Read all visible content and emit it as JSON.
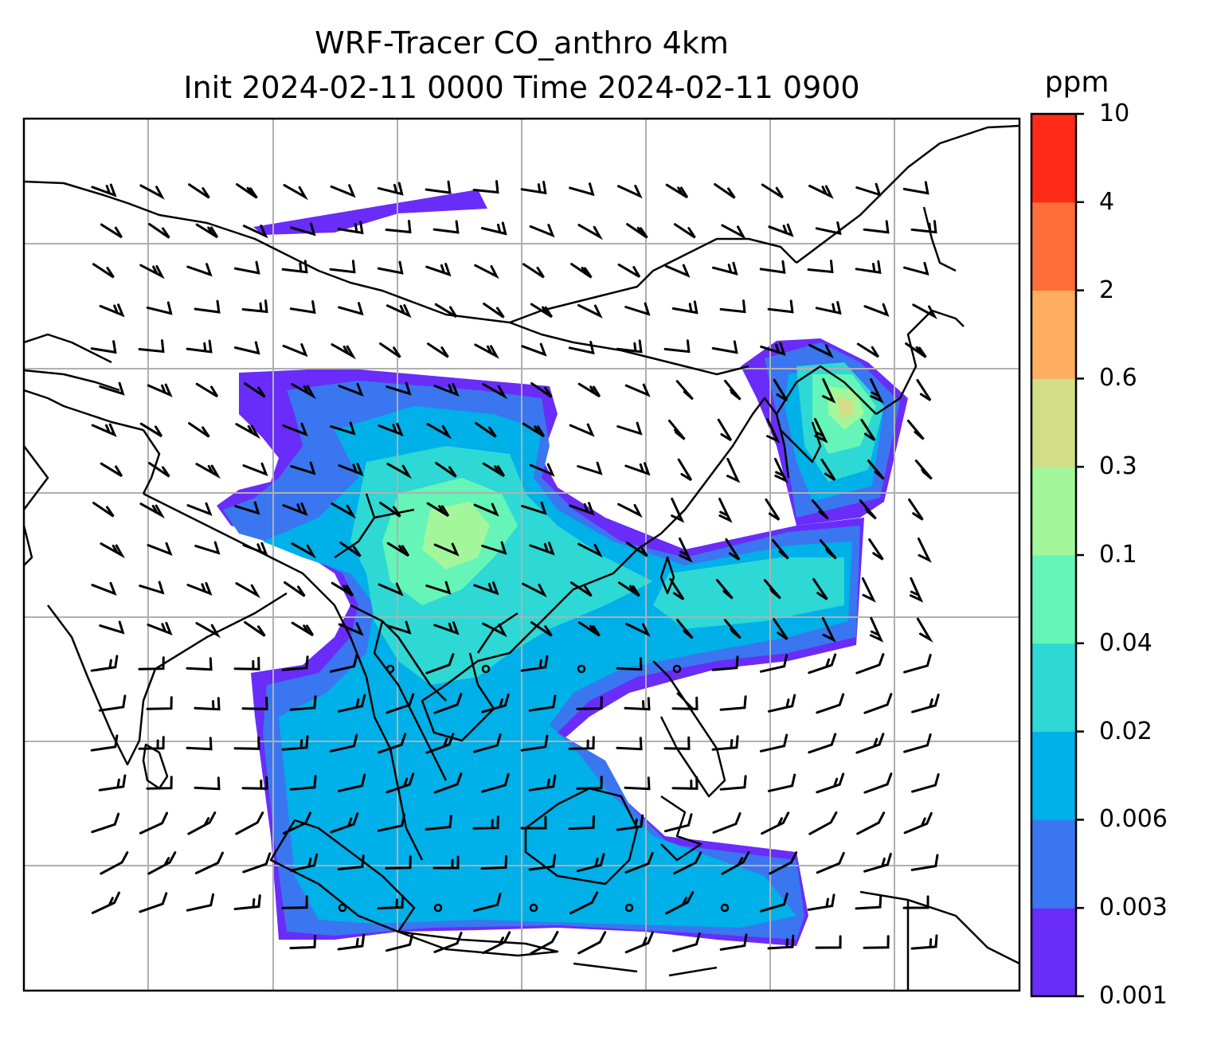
{
  "title": {
    "line1": "WRF-Tracer CO_anthro 4km",
    "line2": "Init 2024-02-11 0000 Time 2024-02-11 0900"
  },
  "colorbar": {
    "unit": "ppm",
    "levels": [
      "0.001",
      "0.003",
      "0.006",
      "0.02",
      "0.04",
      "0.1",
      "0.3",
      "0.6",
      "2",
      "4",
      "10"
    ],
    "colors": [
      "#6a2cf8",
      "#3a76ef",
      "#00b0e8",
      "#2ed8d4",
      "#66f5b8",
      "#a3f79a",
      "#d2de88",
      "#fdae61",
      "#ff6e3a",
      "#ff2a18"
    ]
  },
  "map": {
    "projection": "lat-lon",
    "gridlines": true,
    "field_name": "CO_anthro",
    "wind_barbs": true,
    "colors": {
      "coastline": "#000000",
      "grid": "#b0b0b0",
      "barb": "#000000"
    }
  }
}
